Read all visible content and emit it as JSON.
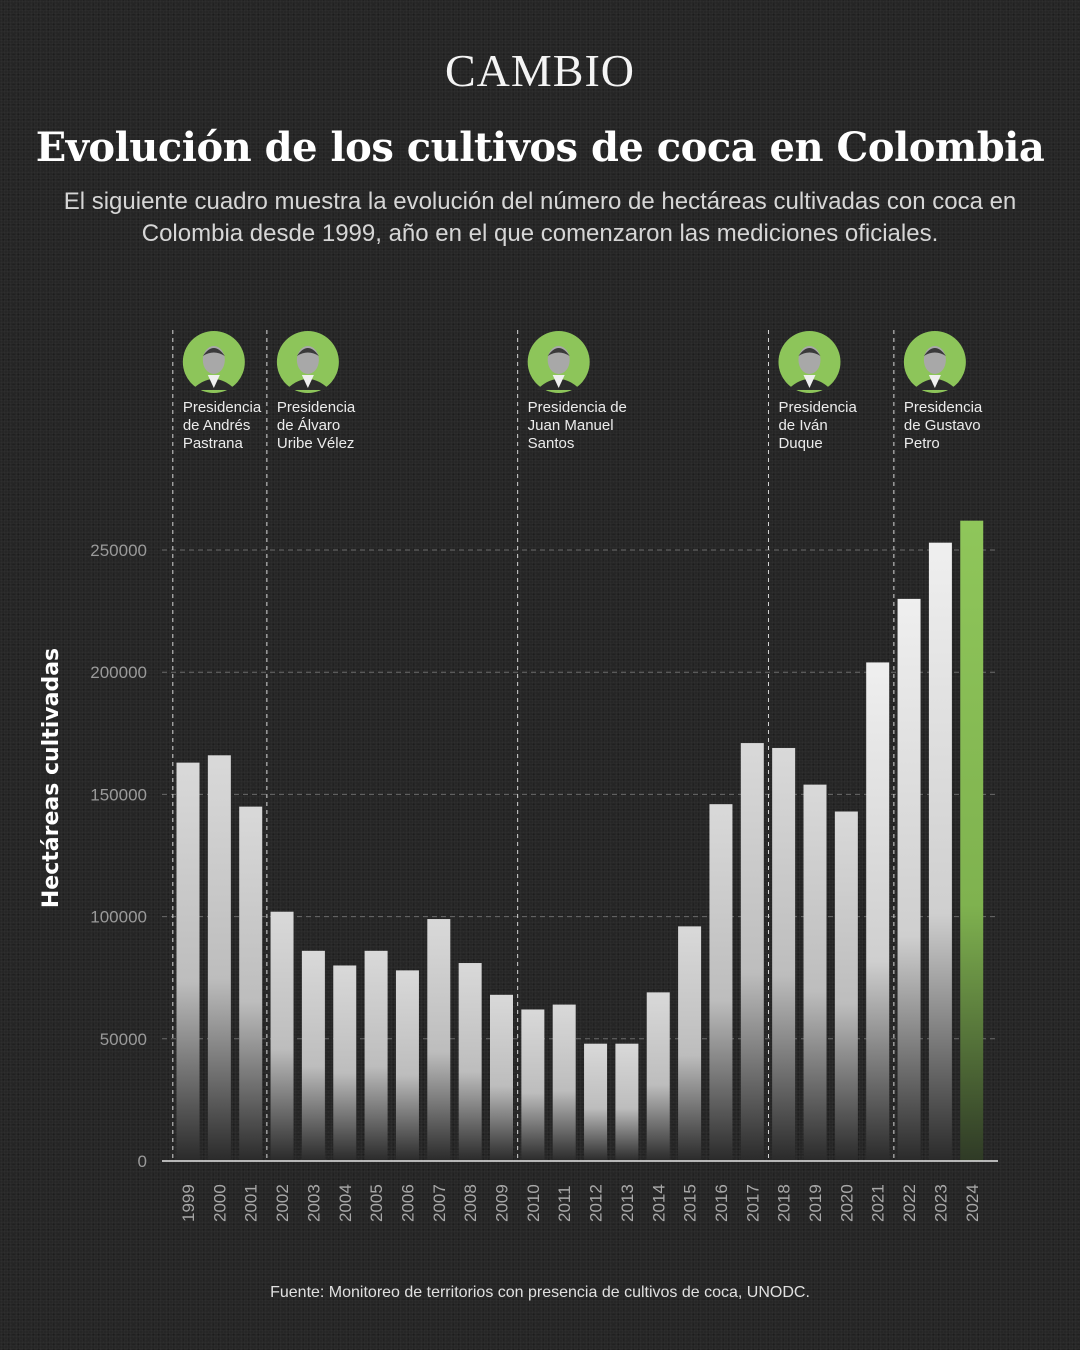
{
  "header": {
    "brand": "CAMBIO",
    "title": "Evolución de los cultivos de coca en Colombia",
    "subtitle": "El siguiente cuadro muestra la evolución del número de hectáreas cultivadas con coca en Colombia desde 1999, año en el que comenzaron las mediciones oficiales."
  },
  "footer": {
    "source": "Fuente: Monitoreo de territorios con presencia de cultivos de coca, UNODC."
  },
  "colors": {
    "background": "#262626",
    "bar_top": "#d9d9d9",
    "bar_bottom": "#2a2a2a",
    "highlight_top": "#8fc65a",
    "highlight_bottom": "#2f3a26",
    "portrait_ring": "#8dc55a"
  },
  "presidencies": [
    {
      "start_year": "1999",
      "label_lines": [
        "Presidencia",
        "de Andrés",
        "Pastrana"
      ],
      "icon": "portrait-andres-pastrana"
    },
    {
      "start_year": "2002",
      "label_lines": [
        "Presidencia",
        "de Álvaro",
        "Uribe Vélez"
      ],
      "icon": "portrait-alvaro-uribe"
    },
    {
      "start_year": "2010",
      "label_lines": [
        "Presidencia de",
        "Juan Manuel",
        "Santos"
      ],
      "icon": "portrait-juan-manuel-santos"
    },
    {
      "start_year": "2018",
      "label_lines": [
        "Presidencia",
        "de Iván",
        "Duque"
      ],
      "icon": "portrait-ivan-duque"
    },
    {
      "start_year": "2022",
      "label_lines": [
        "Presidencia",
        "de Gustavo",
        "Petro"
      ],
      "icon": "portrait-gustavo-petro"
    }
  ],
  "chart_data": {
    "type": "bar",
    "title": "",
    "xlabel": "",
    "ylabel": "Hectáreas cultivadas",
    "ylim": [
      0,
      260000
    ],
    "yticks": [
      0,
      50000,
      100000,
      150000,
      200000,
      250000
    ],
    "grid": true,
    "categories": [
      "1999",
      "2000",
      "2001",
      "2002",
      "2003",
      "2004",
      "2005",
      "2006",
      "2007",
      "2008",
      "2009",
      "2010",
      "2011",
      "2012",
      "2013",
      "2014",
      "2015",
      "2016",
      "2017",
      "2018",
      "2019",
      "2020",
      "2021",
      "2022",
      "2023",
      "2024"
    ],
    "values": [
      163000,
      166000,
      145000,
      102000,
      86000,
      80000,
      86000,
      78000,
      99000,
      81000,
      68000,
      62000,
      64000,
      48000,
      48000,
      69000,
      96000,
      146000,
      171000,
      169000,
      154000,
      143000,
      204000,
      230000,
      253000,
      262000
    ],
    "highlight_category": "2024"
  }
}
